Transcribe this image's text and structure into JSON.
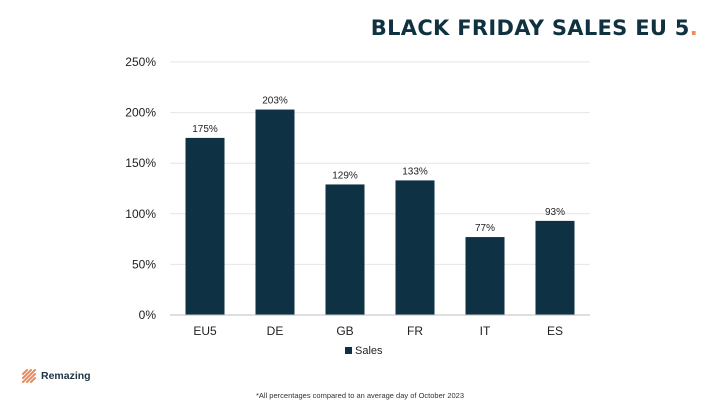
{
  "header": {
    "title": "BLACK FRIDAY SALES EU 5",
    "title_dot": "."
  },
  "chart_data": {
    "type": "bar",
    "title": "BLACK FRIDAY SALES EU 5.",
    "categories": [
      "EU5",
      "DE",
      "GB",
      "FR",
      "IT",
      "ES"
    ],
    "series": [
      {
        "name": "Sales",
        "values": [
          175,
          203,
          129,
          133,
          77,
          93
        ],
        "labels": [
          "175%",
          "203%",
          "129%",
          "133%",
          "77%",
          "93%"
        ]
      }
    ],
    "y_ticks": [
      "0%",
      "50%",
      "100%",
      "150%",
      "200%",
      "250%"
    ],
    "ylim": [
      0,
      250
    ],
    "grid": true,
    "legend": "bottom",
    "colors": {
      "bar": "#0e3243",
      "grid": "#e6e6e6",
      "axis": "#bfbfbf",
      "text": "#222222",
      "accent": "#f08a5d"
    }
  },
  "brand": {
    "name": "Remazing"
  },
  "footnote": "*All percentages compared to an average day of October 2023"
}
